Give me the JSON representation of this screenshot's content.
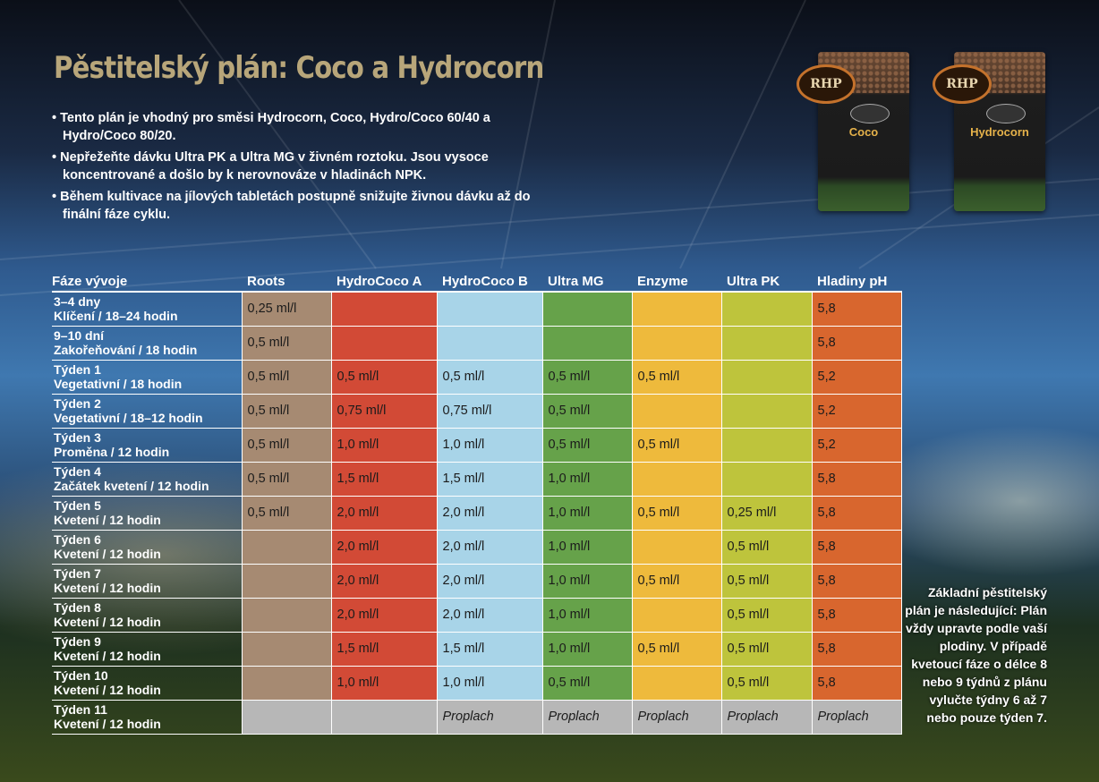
{
  "title": "Pěstitelský plán: Coco a Hydrocorn",
  "bullets": [
    "Tento plán je vhodný pro směsi Hydrocorn, Coco, Hydro/Coco 60/40 a Hydro/Coco 80/20.",
    "Nepřežeňte dávku Ultra PK a Ultra MG v živném roztoku. Jsou vysoce koncentrované a došlo by k nerovnováze v hladinách NPK.",
    "Během kultivace na jílových tabletách postupně snižujte živnou dávku až do finální fáze cyklu."
  ],
  "products": [
    {
      "logo": "RHP",
      "name": "Coco"
    },
    {
      "logo": "RHP",
      "name": "Hydrocorn"
    }
  ],
  "table": {
    "headers": [
      "Fáze vývoje",
      "Roots",
      "HydroCoco A",
      "HydroCoco B",
      "Ultra MG",
      "Enzyme",
      "Ultra PK",
      "Hladiny pH"
    ],
    "rows": [
      {
        "phase": "3–4 dny",
        "detail": "Klíčení / 18–24 hodin",
        "roots": "0,25 ml/l",
        "ha": "",
        "hb": "",
        "mg": "",
        "enz": "",
        "pk": "",
        "ph": "5,8"
      },
      {
        "phase": "9–10 dní",
        "detail": "Zakořeňování / 18 hodin",
        "roots": "0,5 ml/l",
        "ha": "",
        "hb": "",
        "mg": "",
        "enz": "",
        "pk": "",
        "ph": "5,8"
      },
      {
        "phase": "Týden 1",
        "detail": "Vegetativní / 18 hodin",
        "roots": "0,5 ml/l",
        "ha": "0,5 ml/l",
        "hb": "0,5 ml/l",
        "mg": "0,5 ml/l",
        "enz": "0,5 ml/l",
        "pk": "",
        "ph": "5,2"
      },
      {
        "phase": "Týden 2",
        "detail": "Vegetativní / 18–12 hodin",
        "roots": "0,5 ml/l",
        "ha": "0,75 ml/l",
        "hb": "0,75 ml/l",
        "mg": "0,5 ml/l",
        "enz": "",
        "pk": "",
        "ph": "5,2"
      },
      {
        "phase": "Týden 3",
        "detail": "Proměna / 12 hodin",
        "roots": "0,5 ml/l",
        "ha": "1,0 ml/l",
        "hb": "1,0 ml/l",
        "mg": "0,5 ml/l",
        "enz": "0,5 ml/l",
        "pk": "",
        "ph": "5,2"
      },
      {
        "phase": "Týden 4",
        "detail": "Začátek kvetení / 12 hodin",
        "roots": "0,5 ml/l",
        "ha": "1,5 ml/l",
        "hb": "1,5 ml/l",
        "mg": "1,0 ml/l",
        "enz": "",
        "pk": "",
        "ph": "5,8"
      },
      {
        "phase": "Týden 5",
        "detail": "Kvetení / 12 hodin",
        "roots": "0,5 ml/l",
        "ha": "2,0 ml/l",
        "hb": "2,0 ml/l",
        "mg": "1,0 ml/l",
        "enz": "0,5 ml/l",
        "pk": "0,25 ml/l",
        "ph": "5,8"
      },
      {
        "phase": "Týden 6",
        "detail": "Kvetení / 12 hodin",
        "roots": "",
        "ha": "2,0 ml/l",
        "hb": "2,0 ml/l",
        "mg": "1,0 ml/l",
        "enz": "",
        "pk": "0,5 ml/l",
        "ph": "5,8"
      },
      {
        "phase": "Týden 7",
        "detail": "Kvetení / 12 hodin",
        "roots": "",
        "ha": "2,0 ml/l",
        "hb": "2,0 ml/l",
        "mg": "1,0 ml/l",
        "enz": "0,5 ml/l",
        "pk": "0,5 ml/l",
        "ph": "5,8"
      },
      {
        "phase": "Týden 8",
        "detail": "Kvetení / 12 hodin",
        "roots": "",
        "ha": "2,0 ml/l",
        "hb": "2,0 ml/l",
        "mg": "1,0 ml/l",
        "enz": "",
        "pk": "0,5 ml/l",
        "ph": "5,8"
      },
      {
        "phase": "Týden 9",
        "detail": "Kvetení / 12 hodin",
        "roots": "",
        "ha": "1,5 ml/l",
        "hb": "1,5 ml/l",
        "mg": "1,0 ml/l",
        "enz": "0,5 ml/l",
        "pk": "0,5 ml/l",
        "ph": "5,8"
      },
      {
        "phase": "Týden 10",
        "detail": "Kvetení / 12 hodin",
        "roots": "",
        "ha": "1,0 ml/l",
        "hb": "1,0 ml/l",
        "mg": "0,5 ml/l",
        "enz": "",
        "pk": "0,5 ml/l",
        "ph": "5,8"
      },
      {
        "phase": "Týden 11",
        "detail": "Kvetení / 12 hodin",
        "roots": "",
        "ha": "",
        "hb": "Proplach",
        "mg": "Proplach",
        "enz": "Proplach",
        "pk": "Proplach",
        "ph": "Proplach",
        "final": true
      }
    ]
  },
  "side_note": "Základní pěstitelský plán je následující: Plán vždy upravte podle vaší plodiny. V případě kvetoucí fáze o délce 8 nebo 9 týdnů z plánu vylučte týdny 6 až 7 nebo pouze týden 7.",
  "colors": {
    "roots": "#a68a72",
    "hydrococo_a": "#d24a36",
    "hydrococo_b": "#a8d4e8",
    "ultra_mg": "#66a24a",
    "enzyme": "#eeba3c",
    "ultra_pk": "#bec43c",
    "ph": "#d8662e",
    "flush": "#b7b7b7",
    "title": "#b8a67a"
  }
}
